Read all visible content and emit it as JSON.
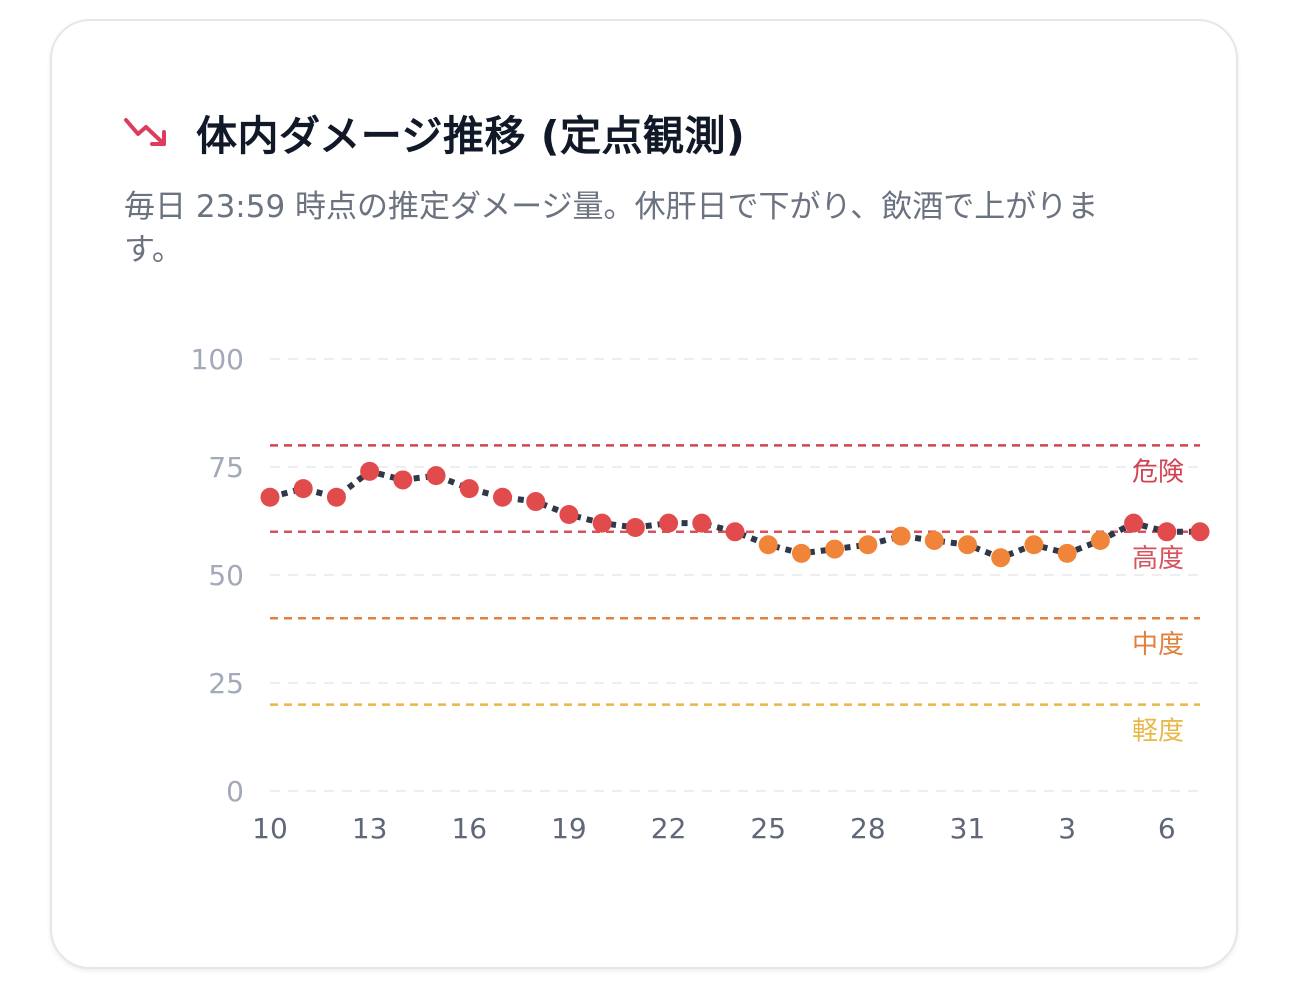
{
  "card": {
    "title": "体内ダメージ推移 (定点観測)",
    "icon": "trend-down-icon",
    "icon_color": "#dc3d5c",
    "subtitle": "毎日 23:59 時点の推定ダメージ量。休肝日で下がり、飲酒で上がります。"
  },
  "chart_data": {
    "type": "line",
    "title": "",
    "xlabel": "",
    "ylabel": "",
    "x_tick_labels": [
      "10",
      "13",
      "16",
      "19",
      "22",
      "25",
      "28",
      "31",
      "3",
      "6"
    ],
    "y_tick_labels": [
      "0",
      "25",
      "50",
      "75",
      "100"
    ],
    "ylim": [
      0,
      100
    ],
    "grid": true,
    "x": [
      "10",
      "11",
      "12",
      "13",
      "14",
      "15",
      "16",
      "17",
      "18",
      "19",
      "20",
      "21",
      "22",
      "23",
      "24",
      "25",
      "26",
      "27",
      "28",
      "29",
      "30",
      "31",
      "1",
      "2",
      "3",
      "4",
      "5",
      "6",
      "7"
    ],
    "values": [
      68,
      70,
      68,
      74,
      72,
      73,
      70,
      68,
      67,
      64,
      62,
      61,
      62,
      62,
      60,
      57,
      55,
      56,
      57,
      59,
      58,
      57,
      54,
      57,
      55,
      58,
      62,
      60,
      60
    ],
    "thresholds": [
      {
        "label": "危険",
        "value": 80,
        "color": "#d14353"
      },
      {
        "label": "高度",
        "value": 60,
        "color": "#d6535e"
      },
      {
        "label": "中度",
        "value": 40,
        "color": "#e0813e"
      },
      {
        "label": "軽度",
        "value": 20,
        "color": "#e8b84a"
      }
    ],
    "colors": {
      "high_point": "#e14b4b",
      "moderate_point": "#f0853a",
      "line": "#2f3848",
      "axis_text": "#a2aab9",
      "x_axis_text": "#5f6778",
      "grid": "#eceef2"
    }
  }
}
